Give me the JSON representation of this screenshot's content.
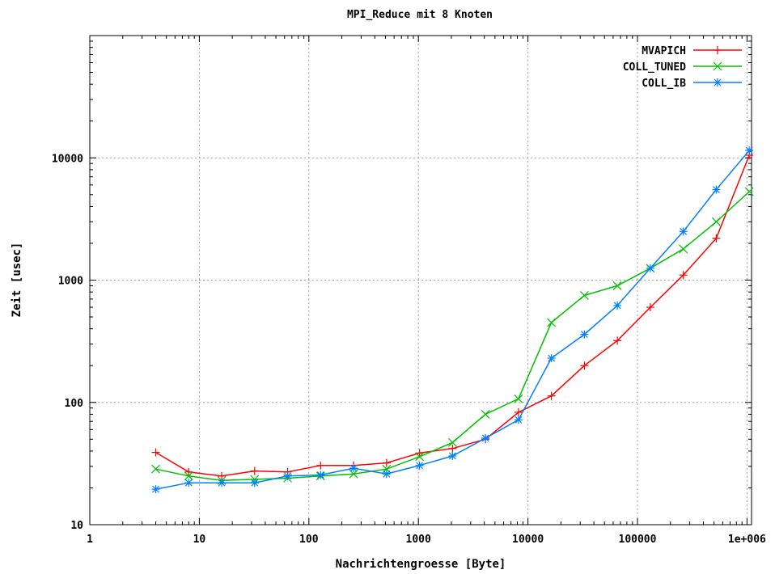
{
  "chart_data": {
    "type": "line",
    "title": "MPI_Reduce mit 8 Knoten",
    "xlabel": "Nachrichtengroesse [Byte]",
    "ylabel": "Zeit [usec]",
    "x_scale": "log",
    "y_scale": "log",
    "xlim": [
      1,
      1100000
    ],
    "ylim": [
      10,
      100000
    ],
    "x_ticks": [
      {
        "value": 1,
        "label": "1"
      },
      {
        "value": 10,
        "label": "10"
      },
      {
        "value": 100,
        "label": "100"
      },
      {
        "value": 1000,
        "label": "1000"
      },
      {
        "value": 10000,
        "label": "10000"
      },
      {
        "value": 100000,
        "label": "100000"
      },
      {
        "value": 1000000,
        "label": "1e+006"
      }
    ],
    "y_ticks": [
      {
        "value": 10,
        "label": "10"
      },
      {
        "value": 100,
        "label": "100"
      },
      {
        "value": 1000,
        "label": "1000"
      },
      {
        "value": 10000,
        "label": "10000"
      }
    ],
    "grid": true,
    "legend_position": "top-right",
    "x": [
      4,
      8,
      16,
      32,
      64,
      128,
      256,
      512,
      1024,
      2048,
      4096,
      8192,
      16384,
      32768,
      65536,
      131072,
      262144,
      524288,
      1048576
    ],
    "series": [
      {
        "name": "MVAPICH",
        "color": "#ff0000",
        "marker": "plus",
        "values": [
          39,
          27,
          25,
          27.5,
          27,
          30.5,
          30.5,
          32,
          38.5,
          42,
          50,
          83,
          113,
          200,
          320,
          600,
          1100,
          2200,
          10500
        ]
      },
      {
        "name": "COLL_TUNED",
        "color": "#00c000",
        "marker": "cross",
        "values": [
          28.5,
          25,
          23,
          23.5,
          24,
          25,
          26,
          28.5,
          36,
          47,
          80,
          107,
          450,
          750,
          900,
          1250,
          1800,
          3000,
          5300
        ]
      },
      {
        "name": "COLL_IB",
        "color": "#0080ff",
        "marker": "star",
        "values": [
          19.5,
          22,
          22,
          22,
          25,
          25.5,
          29,
          26,
          30.5,
          36.5,
          51,
          72,
          230,
          360,
          620,
          1250,
          2500,
          5500,
          11500
        ]
      }
    ]
  }
}
